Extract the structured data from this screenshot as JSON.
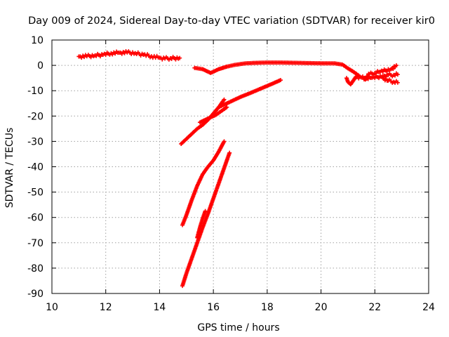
{
  "chart_data": {
    "type": "scatter",
    "title": "Day 009 of 2024, Sidereal Day-to-day VTEC variation (SDTVAR) for receiver kir0",
    "xlabel": "GPS time / hours",
    "ylabel": "SDTVAR / TECUs",
    "xlim": [
      10,
      24
    ],
    "ylim": [
      -90,
      10
    ],
    "xticks": [
      "10",
      "12",
      "14",
      "16",
      "18",
      "20",
      "22",
      "24"
    ],
    "yticks": [
      "10",
      "0",
      "-10",
      "-20",
      "-30",
      "-40",
      "-50",
      "-60",
      "-70",
      "-80",
      "-90"
    ],
    "grid": true,
    "marker": "plus",
    "color": "#ff0000",
    "series": [
      {
        "x": [
          11.0,
          11.3,
          11.6,
          11.9,
          12.2,
          12.5,
          12.8,
          13.1,
          13.4,
          13.7,
          14.0,
          14.2,
          14.4,
          14.75
        ],
        "y": [
          3.5,
          3.6,
          3.9,
          4.2,
          4.8,
          5.0,
          5.1,
          4.8,
          4.2,
          3.6,
          3.0,
          2.7,
          2.8,
          2.9
        ]
      },
      {
        "x": [
          15.3,
          15.6,
          15.9,
          16.2,
          16.5,
          16.8,
          17.2,
          17.6,
          18.0,
          18.5,
          19.0,
          19.5,
          20.0,
          20.5,
          20.8,
          21.0,
          21.2,
          21.4
        ],
        "y": [
          -1.0,
          -1.5,
          -3.0,
          -1.5,
          -0.5,
          0.2,
          0.8,
          1.0,
          1.1,
          1.1,
          1.0,
          0.9,
          0.8,
          0.8,
          0.3,
          -1.2,
          -2.5,
          -4.0
        ]
      },
      {
        "x": [
          20.95,
          21.0,
          21.1,
          21.2,
          21.3
        ],
        "y": [
          -5.0,
          -6.5,
          -7.5,
          -6.0,
          -4.5
        ]
      },
      {
        "x": [
          21.3,
          21.5,
          21.7,
          21.9,
          22.1,
          22.3,
          22.5,
          22.7,
          22.85
        ],
        "y": [
          -4.5,
          -4.8,
          -5.2,
          -4.9,
          -4.6,
          -4.2,
          -3.8,
          -3.8,
          -3.6
        ]
      },
      {
        "x": [
          21.6,
          21.8,
          22.0,
          22.2,
          22.4,
          22.6,
          22.8
        ],
        "y": [
          -5.5,
          -3.5,
          -3.0,
          -2.5,
          -2.0,
          -1.5,
          0.0
        ]
      },
      {
        "x": [
          22.3,
          22.5,
          22.7,
          22.85
        ],
        "y": [
          -5.0,
          -6.0,
          -6.5,
          -6.8
        ]
      },
      {
        "x": [
          16.2,
          16.6,
          17.0,
          17.4,
          17.8,
          18.2,
          18.5
        ],
        "y": [
          -16.5,
          -14.5,
          -12.5,
          -10.8,
          -9.0,
          -7.2,
          -5.8
        ]
      },
      {
        "x": [
          14.8,
          15.0,
          15.2,
          15.4,
          15.6,
          15.8,
          16.0,
          16.2,
          16.4
        ],
        "y": [
          -31.0,
          -29.0,
          -27.0,
          -25.0,
          -23.5,
          -21.5,
          -19.0,
          -16.5,
          -13.5
        ]
      },
      {
        "x": [
          15.5,
          15.7,
          15.9,
          16.1,
          16.3,
          16.5
        ],
        "y": [
          -22.5,
          -21.5,
          -20.5,
          -19.5,
          -18.0,
          -16.5
        ]
      },
      {
        "x": [
          14.85,
          15.0,
          15.2,
          15.4,
          15.6,
          15.8,
          16.0,
          16.2,
          16.4
        ],
        "y": [
          -63.0,
          -59.0,
          -53.0,
          -47.5,
          -43.0,
          -40.0,
          -37.5,
          -34.0,
          -30.0
        ]
      },
      {
        "x": [
          14.85,
          15.0,
          15.2,
          15.4,
          15.6,
          15.8,
          16.0,
          16.2,
          16.4,
          16.6
        ],
        "y": [
          -87.0,
          -82.0,
          -76.0,
          -70.0,
          -64.0,
          -58.5,
          -52.5,
          -46.5,
          -40.5,
          -34.5
        ]
      },
      {
        "x": [
          15.4,
          15.5,
          15.6,
          15.7
        ],
        "y": [
          -68.0,
          -64.0,
          -60.5,
          -57.5
        ]
      }
    ]
  }
}
